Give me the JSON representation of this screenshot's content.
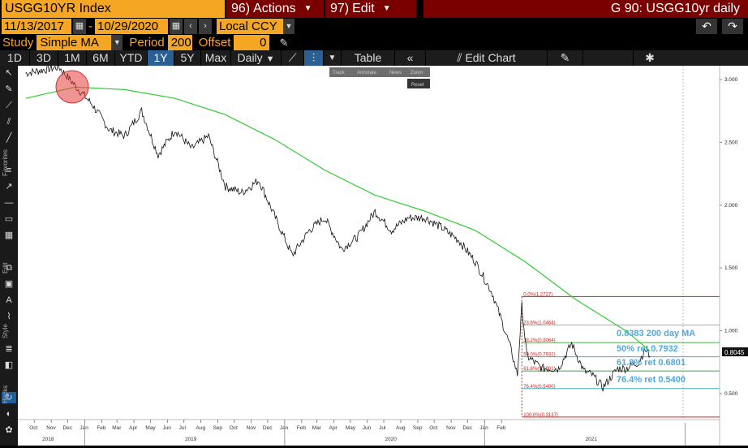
{
  "header": {
    "ticker": "USGG10YR Index",
    "actions_num": "96)",
    "actions_label": "Actions",
    "edit_num": "97)",
    "edit_label": "Edit",
    "function_title": "G 90: USGG10yr daily"
  },
  "range": {
    "start": "11/13/2017",
    "end": "10/29/2020",
    "currency": "Local CCY"
  },
  "study": {
    "label": "Study",
    "value": "Simple MA",
    "period_label": "Period",
    "period_value": "200",
    "offset_label": "Offset",
    "offset_value": "0"
  },
  "toolbar": {
    "periods": [
      "1D",
      "3D",
      "1M",
      "6M",
      "YTD",
      "1Y",
      "5Y",
      "Max"
    ],
    "selected_period": "1Y",
    "frequency": "Daily",
    "table_label": "Table",
    "edit_chart_label": "Edit Chart"
  },
  "mini_toolbar": {
    "items": [
      "Track",
      "Annotate",
      "News",
      "Zoom"
    ],
    "reset": "Reset"
  },
  "side_labels": [
    "Favorites",
    "Edit",
    "Style",
    "Hacks"
  ],
  "colors": {
    "accent": "#f5a623",
    "menu_bg": "#7a0000",
    "selected_tab": "#2c5f93",
    "ma_line": "#33cc33",
    "annotation": "#4fa8e0",
    "fib_top": "#cc2222"
  },
  "chart_data": {
    "type": "line",
    "series": [
      {
        "x": [
          "2017-09-15",
          "2017-11-15",
          "2017-12-15",
          "2018-01-15",
          "2018-02-15",
          "2018-03-15",
          "2018-04-15",
          "2018-05-15",
          "2018-06-15",
          "2018-07-15",
          "2018-08-15",
          "2018-09-15",
          "2018-10-15",
          "2018-11-15",
          "2018-12-15",
          "2019-01-15",
          "2019-02-15",
          "2019-03-15",
          "2019-04-15",
          "2019-05-15",
          "2019-06-15",
          "2019-07-15",
          "2019-08-15",
          "2019-09-15",
          "2019-10-15",
          "2019-11-15",
          "2019-12-15",
          "2020-01-15",
          "2020-02-15",
          "2020-03-01",
          "2020-03-09",
          "2020-03-18",
          "2020-04-15",
          "2020-05-15",
          "2020-06-08",
          "2020-06-30",
          "2020-07-15",
          "2020-08-04",
          "2020-08-31",
          "2020-09-15",
          "2020-10-08",
          "2020-10-20",
          "2020-10-29"
        ],
        "values": [
          3.05,
          3.1,
          2.95,
          2.8,
          2.6,
          2.55,
          2.75,
          2.4,
          2.6,
          2.45,
          2.55,
          2.15,
          2.1,
          2.2,
          1.9,
          1.6,
          1.8,
          1.9,
          1.65,
          1.75,
          1.95,
          1.8,
          1.9,
          1.9,
          1.82,
          1.72,
          1.55,
          1.3,
          0.9,
          0.65,
          1.2,
          0.8,
          0.7,
          0.7,
          0.9,
          0.68,
          0.65,
          0.55,
          0.7,
          0.7,
          0.75,
          0.85,
          0.8
        ]
      },
      {
        "name": "200 day MA",
        "x": [
          "2017-09-15",
          "2017-12-15",
          "2018-03-15",
          "2018-06-15",
          "2018-09-15",
          "2018-12-15",
          "2019-03-15",
          "2019-06-15",
          "2019-09-15",
          "2019-12-15",
          "2020-03-15",
          "2020-06-15",
          "2020-09-15",
          "2020-10-29"
        ],
        "values": [
          2.85,
          2.94,
          2.92,
          2.85,
          2.72,
          2.52,
          2.28,
          2.08,
          1.95,
          1.8,
          1.55,
          1.25,
          1.0,
          0.84
        ]
      }
    ],
    "ylim": [
      0.3,
      3.05
    ],
    "y_ticks": [
      "3.000",
      "2.500",
      "2.000",
      "1.500",
      "1.000",
      "0.500"
    ],
    "x_month_ticks": [
      "Oct",
      "Nov",
      "Dec",
      "Jan",
      "Feb",
      "Mar",
      "Apr",
      "May",
      "Jun",
      "Jul",
      "Aug",
      "Sep",
      "Oct",
      "Nov",
      "Dec",
      "Jan",
      "Feb",
      "Mar",
      "Apr",
      "May",
      "Jun",
      "Jul",
      "Aug",
      "Sep",
      "Oct",
      "Nov",
      "Dec",
      "Jan",
      "Feb"
    ],
    "x_year_ticks": [
      "2018",
      "2019",
      "2020",
      "2021"
    ],
    "last_value": "0.8045",
    "fib_levels": [
      {
        "label": "0.0%(1.2727)",
        "value": 1.2727
      },
      {
        "label": "23.6%(1.0464)",
        "value": 1.0464
      },
      {
        "label": "38.2%(0.9064)",
        "value": 0.9064
      },
      {
        "label": "50.0%(0.7932)",
        "value": 0.7932
      },
      {
        "label": "61.8%(0.6801)",
        "value": 0.6801
      },
      {
        "label": "76.4%(0.5400)",
        "value": 0.54
      },
      {
        "label": "100.0%(0.3137)",
        "value": 0.3137
      }
    ],
    "annotations": [
      "0.8383 200 day MA",
      "50% ret 0.7932",
      "61.8% ret 0.6801",
      "76.4% ret 0.5400"
    ]
  }
}
